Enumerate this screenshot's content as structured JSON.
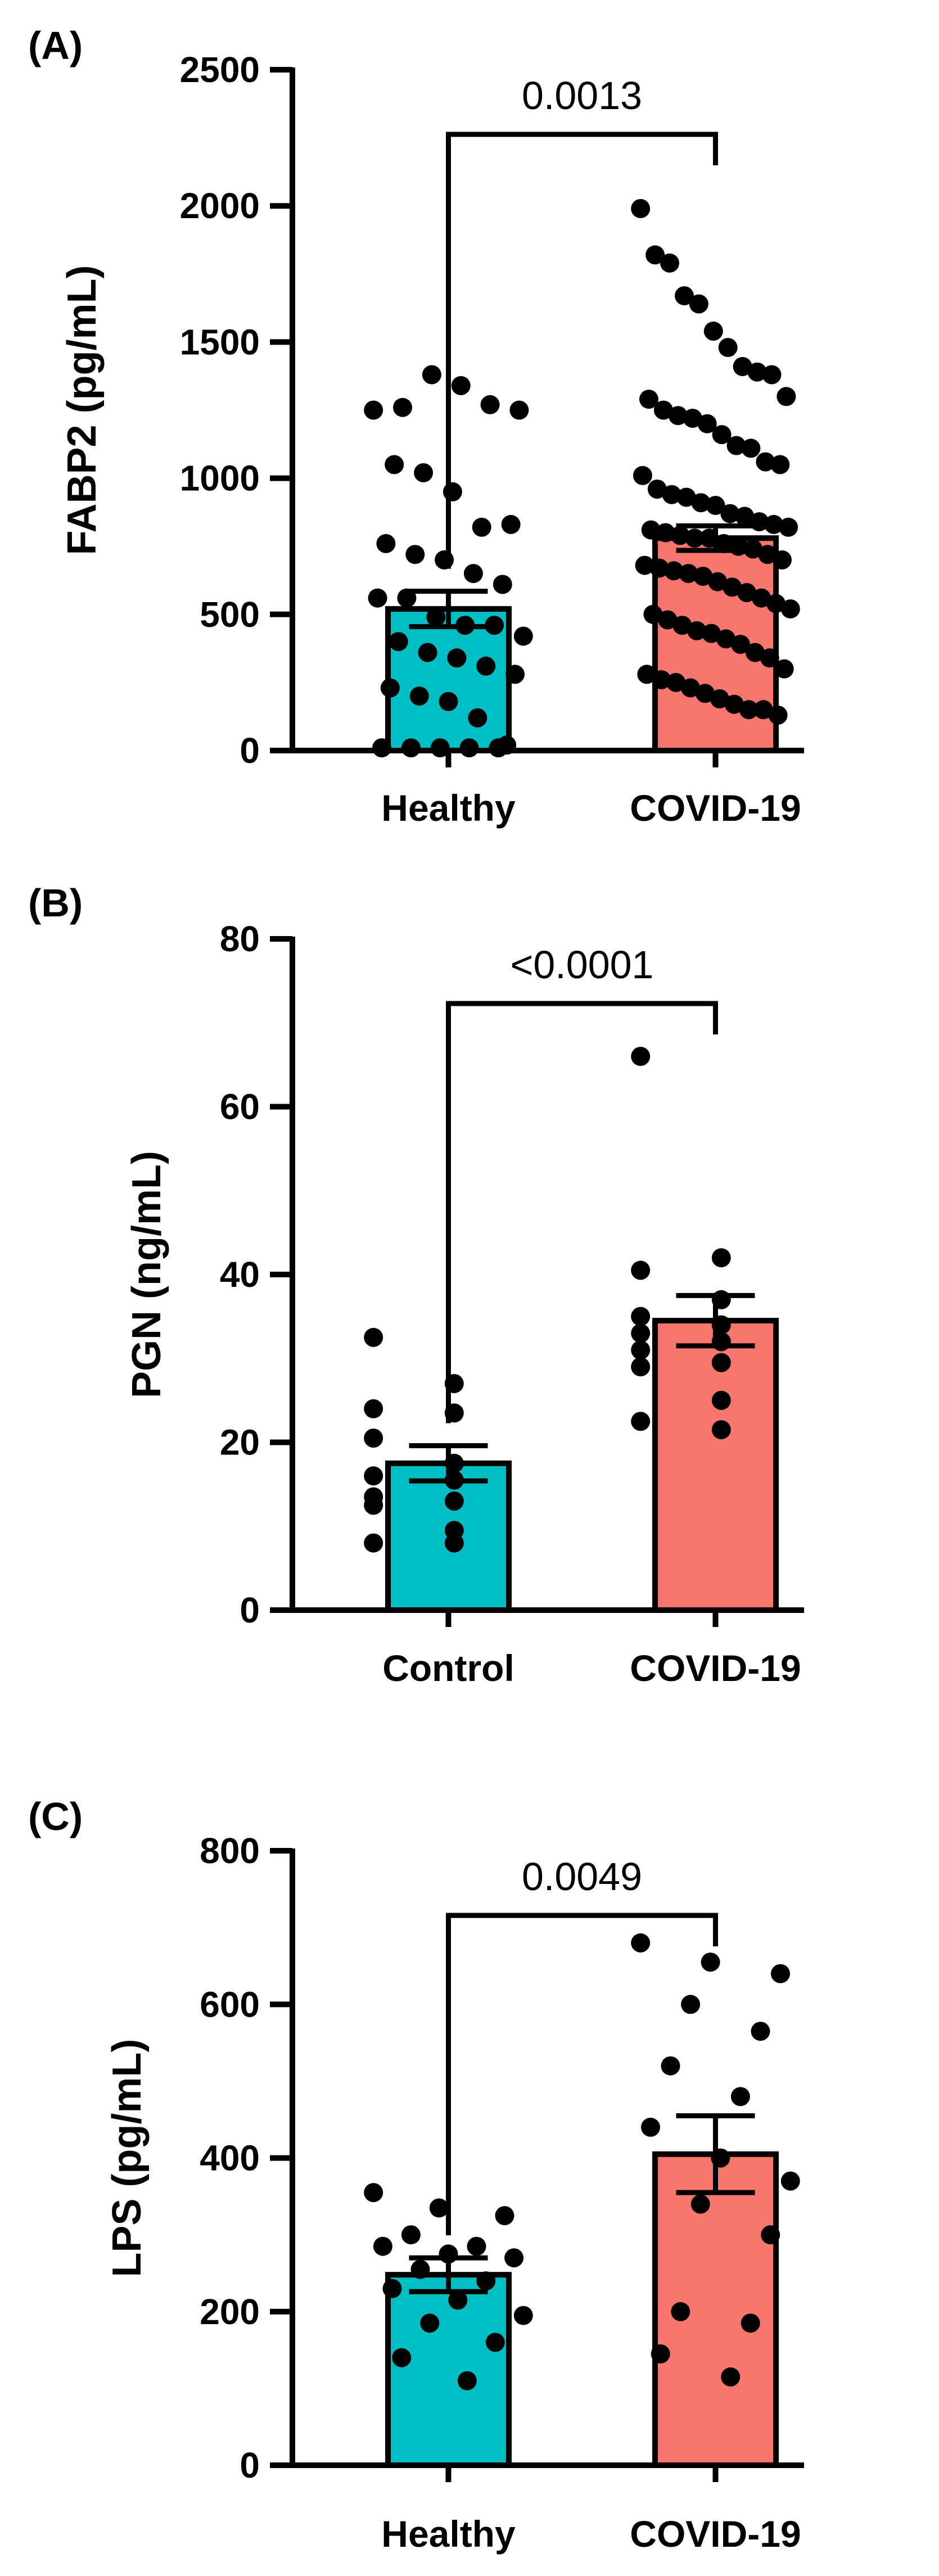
{
  "colors": {
    "group1": "#00BFC4",
    "group2": "#F8766D",
    "ink": "#000000"
  },
  "chart_data": [
    {
      "panel_label": "(A)",
      "type": "bar",
      "ylabel": "FABP2 (pg/mL)",
      "ylim": [
        0,
        2500
      ],
      "yticks": [
        0,
        500,
        1000,
        1500,
        2000,
        2500
      ],
      "ytick_labels": [
        "0",
        "500",
        "1000",
        "1500",
        "2000",
        "2500"
      ],
      "categories": [
        "Healthy",
        "COVID-19"
      ],
      "values": [
        520,
        780
      ],
      "sem": [
        65,
        45
      ],
      "significance": "0.0013",
      "points": [
        [
          1250,
          1260,
          1380,
          1340,
          1270,
          1250,
          1050,
          1020,
          950,
          820,
          830,
          760,
          720,
          700,
          650,
          610,
          560,
          560,
          490,
          460,
          460,
          420,
          400,
          360,
          340,
          310,
          280,
          230,
          200,
          180,
          120,
          20,
          10,
          10,
          10,
          10,
          10
        ],
        [
          1990,
          1820,
          1790,
          1670,
          1640,
          1540,
          1480,
          1410,
          1390,
          1380,
          1300,
          1290,
          1250,
          1230,
          1220,
          1200,
          1160,
          1120,
          1110,
          1060,
          1050,
          1010,
          960,
          940,
          930,
          910,
          900,
          870,
          860,
          840,
          830,
          820,
          810,
          800,
          790,
          780,
          780,
          760,
          750,
          740,
          720,
          700,
          680,
          670,
          660,
          650,
          640,
          620,
          600,
          580,
          560,
          540,
          520,
          500,
          480,
          460,
          440,
          430,
          410,
          390,
          360,
          340,
          300,
          280,
          260,
          250,
          230,
          210,
          190,
          170,
          150,
          150,
          130
        ]
      ]
    },
    {
      "panel_label": "(B)",
      "type": "bar",
      "ylabel": "PGN (ng/mL)",
      "ylim": [
        0,
        80
      ],
      "yticks": [
        0,
        20,
        40,
        60,
        80
      ],
      "ytick_labels": [
        "0",
        "20",
        "40",
        "60",
        "80"
      ],
      "categories": [
        "Control",
        "COVID-19"
      ],
      "values": [
        17.5,
        34.5
      ],
      "sem": [
        2.1,
        3.0
      ],
      "significance": "<0.0001",
      "points": [
        [
          32.5,
          27,
          24,
          23.5,
          20.5,
          17.5,
          16,
          15.5,
          13.5,
          13,
          12.5,
          9.5,
          8,
          8
        ],
        [
          66,
          42,
          40.5,
          37,
          35,
          34,
          33,
          32,
          31,
          29.5,
          29,
          25,
          22.5,
          21.5
        ]
      ]
    },
    {
      "panel_label": "(C)",
      "type": "bar",
      "ylabel": "LPS (pg/mL)",
      "ylim": [
        0,
        800
      ],
      "yticks": [
        0,
        200,
        400,
        600,
        800
      ],
      "ytick_labels": [
        "0",
        "200",
        "400",
        "600",
        "800"
      ],
      "categories": [
        "Healthy",
        "COVID-19"
      ],
      "values": [
        248,
        405
      ],
      "sem": [
        22,
        50
      ],
      "significance": "0.0049",
      "points": [
        [
          355,
          335,
          325,
          300,
          285,
          285,
          275,
          270,
          255,
          240,
          230,
          215,
          195,
          185,
          160,
          140,
          110
        ],
        [
          680,
          655,
          640,
          600,
          565,
          520,
          480,
          440,
          400,
          370,
          340,
          300,
          200,
          185,
          145,
          115
        ]
      ]
    }
  ]
}
